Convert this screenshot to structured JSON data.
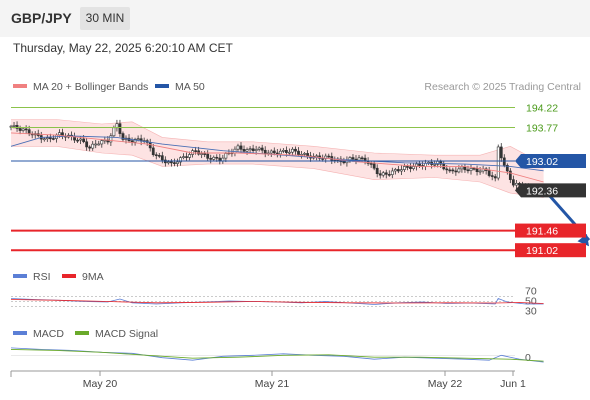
{
  "header": {
    "symbol": "GBP/JPY",
    "interval": "30 MIN",
    "timestamp": "Thursday, May 22, 2025 6:20:10 AM CET"
  },
  "legend": {
    "ma20_label": "MA 20 + Bollinger Bands",
    "ma50_label": "MA 50",
    "credit": "Research © 2025 Trading Central",
    "rsi_label": "RSI",
    "rsi_ma_label": "9MA",
    "macd_label": "MACD",
    "macd_signal_label": "MACD Signal"
  },
  "colors": {
    "candle": "#333333",
    "bollinger_fill": "#fde3e3",
    "bollinger_line": "#f19a9a",
    "ma20": "#f08080",
    "ma50": "#4a6fb5",
    "resistance": "#8bc34a",
    "support": "#e8252a",
    "pivot": "#2456a6",
    "last_price": "#333333",
    "arrow": "#2456a6",
    "rsi": "#5b7fd6",
    "rsi_ma": "#e8252a",
    "macd": "#5b7fd6",
    "macd_signal": "#6aaa2a"
  },
  "chart_data": {
    "type": "candlestick",
    "instrument": "GBP/JPY",
    "timeframe": "30 MIN",
    "x_tick_labels": [
      "May 20",
      "May 21",
      "May 22",
      "Jun 1"
    ],
    "y_range": [
      190.8,
      194.5
    ],
    "close_path": [
      [
        0,
        193.8
      ],
      [
        4,
        193.72
      ],
      [
        8,
        193.6
      ],
      [
        12,
        193.5
      ],
      [
        16,
        193.62
      ],
      [
        20,
        193.55
      ],
      [
        24,
        193.45
      ],
      [
        26,
        193.3
      ],
      [
        28,
        193.42
      ],
      [
        32,
        193.48
      ],
      [
        35,
        193.85
      ],
      [
        37,
        193.5
      ],
      [
        40,
        193.48
      ],
      [
        44,
        193.5
      ],
      [
        47,
        193.2
      ],
      [
        50,
        193.05
      ],
      [
        53,
        192.95
      ],
      [
        57,
        193.1
      ],
      [
        61,
        193.25
      ],
      [
        65,
        193.1
      ],
      [
        69,
        193.05
      ],
      [
        72,
        193.2
      ],
      [
        75,
        193.32
      ],
      [
        78,
        193.25
      ],
      [
        81,
        193.3
      ],
      [
        85,
        193.2
      ],
      [
        89,
        193.22
      ],
      [
        93,
        193.25
      ],
      [
        97,
        193.15
      ],
      [
        101,
        193.1
      ],
      [
        105,
        193.1
      ],
      [
        109,
        193.0
      ],
      [
        113,
        193.08
      ],
      [
        117,
        193.05
      ],
      [
        120,
        192.85
      ],
      [
        122,
        192.7
      ],
      [
        125,
        192.75
      ],
      [
        129,
        192.85
      ],
      [
        133,
        192.9
      ],
      [
        137,
        192.95
      ],
      [
        141,
        192.98
      ],
      [
        145,
        192.78
      ],
      [
        149,
        192.85
      ],
      [
        153,
        192.82
      ],
      [
        157,
        192.8
      ],
      [
        160,
        192.6
      ],
      [
        161,
        193.35
      ],
      [
        163,
        192.9
      ],
      [
        166,
        192.5
      ],
      [
        169,
        192.45
      ],
      [
        172,
        192.4
      ],
      [
        176,
        192.36
      ]
    ],
    "ma20_path": [
      [
        0,
        193.65
      ],
      [
        15,
        193.6
      ],
      [
        30,
        193.5
      ],
      [
        45,
        193.4
      ],
      [
        60,
        193.2
      ],
      [
        75,
        193.2
      ],
      [
        95,
        193.15
      ],
      [
        115,
        193.0
      ],
      [
        135,
        192.9
      ],
      [
        150,
        192.9
      ],
      [
        165,
        192.75
      ],
      [
        176,
        192.55
      ]
    ],
    "ma50_path": [
      [
        0,
        193.35
      ],
      [
        10,
        193.55
      ],
      [
        20,
        193.58
      ],
      [
        35,
        193.55
      ],
      [
        50,
        193.4
      ],
      [
        70,
        193.25
      ],
      [
        90,
        193.15
      ],
      [
        110,
        193.05
      ],
      [
        130,
        192.98
      ],
      [
        150,
        192.95
      ],
      [
        165,
        192.9
      ],
      [
        176,
        192.8
      ]
    ],
    "bollinger_upper": [
      [
        0,
        193.95
      ],
      [
        15,
        193.95
      ],
      [
        30,
        193.85
      ],
      [
        40,
        193.9
      ],
      [
        50,
        193.55
      ],
      [
        65,
        193.45
      ],
      [
        80,
        193.45
      ],
      [
        100,
        193.35
      ],
      [
        120,
        193.2
      ],
      [
        140,
        193.15
      ],
      [
        155,
        193.15
      ],
      [
        165,
        193.35
      ],
      [
        176,
        192.95
      ]
    ],
    "bollinger_lower": [
      [
        0,
        193.35
      ],
      [
        15,
        193.35
      ],
      [
        30,
        193.2
      ],
      [
        40,
        193.15
      ],
      [
        50,
        192.9
      ],
      [
        65,
        192.95
      ],
      [
        80,
        192.95
      ],
      [
        100,
        192.85
      ],
      [
        120,
        192.6
      ],
      [
        140,
        192.65
      ],
      [
        155,
        192.55
      ],
      [
        165,
        192.3
      ],
      [
        176,
        192.2
      ]
    ],
    "horizontal_levels": [
      {
        "value": 194.22,
        "label": "194.22",
        "kind": "resistance"
      },
      {
        "value": 193.77,
        "label": "193.77",
        "kind": "resistance"
      },
      {
        "value": 193.02,
        "label": "193.02",
        "kind": "pivot"
      },
      {
        "value": 192.36,
        "label": "192.36",
        "kind": "last"
      },
      {
        "value": 191.46,
        "label": "191.46",
        "kind": "support"
      },
      {
        "value": 191.02,
        "label": "191.02",
        "kind": "support"
      }
    ],
    "forecast_arrow": {
      "from": [
        176,
        192.36
      ],
      "to": [
        190,
        191.02
      ]
    },
    "rsi": {
      "levels": [
        70,
        50,
        30
      ],
      "range": [
        0,
        100
      ],
      "values": [
        [
          0,
          62
        ],
        [
          8,
          58
        ],
        [
          16,
          55
        ],
        [
          24,
          50
        ],
        [
          32,
          48
        ],
        [
          36,
          60
        ],
        [
          40,
          45
        ],
        [
          48,
          40
        ],
        [
          56,
          45
        ],
        [
          64,
          48
        ],
        [
          72,
          52
        ],
        [
          80,
          50
        ],
        [
          88,
          48
        ],
        [
          96,
          45
        ],
        [
          104,
          50
        ],
        [
          112,
          44
        ],
        [
          120,
          38
        ],
        [
          128,
          45
        ],
        [
          136,
          48
        ],
        [
          144,
          42
        ],
        [
          152,
          44
        ],
        [
          160,
          40
        ],
        [
          161,
          62
        ],
        [
          164,
          48
        ],
        [
          170,
          40
        ],
        [
          176,
          40
        ]
      ],
      "ma_values": [
        [
          0,
          58
        ],
        [
          16,
          55
        ],
        [
          32,
          50
        ],
        [
          48,
          45
        ],
        [
          64,
          47
        ],
        [
          80,
          50
        ],
        [
          96,
          47
        ],
        [
          112,
          45
        ],
        [
          128,
          44
        ],
        [
          144,
          45
        ],
        [
          160,
          44
        ],
        [
          168,
          46
        ],
        [
          176,
          42
        ]
      ]
    },
    "macd": {
      "zero_label": "0",
      "range": [
        -0.3,
        0.25
      ],
      "values": [
        [
          0,
          0.15
        ],
        [
          10,
          0.12
        ],
        [
          20,
          0.1
        ],
        [
          30,
          0.06
        ],
        [
          40,
          0.04
        ],
        [
          50,
          -0.05
        ],
        [
          60,
          -0.1
        ],
        [
          70,
          -0.02
        ],
        [
          80,
          0.0
        ],
        [
          90,
          0.03
        ],
        [
          100,
          0.0
        ],
        [
          110,
          -0.02
        ],
        [
          120,
          -0.08
        ],
        [
          130,
          -0.04
        ],
        [
          140,
          -0.06
        ],
        [
          150,
          -0.08
        ],
        [
          158,
          -0.1
        ],
        [
          162,
          0.0
        ],
        [
          168,
          -0.08
        ],
        [
          176,
          -0.14
        ]
      ],
      "signal": [
        [
          0,
          0.12
        ],
        [
          15,
          0.1
        ],
        [
          30,
          0.06
        ],
        [
          45,
          0.0
        ],
        [
          60,
          -0.06
        ],
        [
          75,
          -0.04
        ],
        [
          90,
          0.0
        ],
        [
          105,
          0.01
        ],
        [
          120,
          -0.04
        ],
        [
          135,
          -0.04
        ],
        [
          150,
          -0.06
        ],
        [
          165,
          -0.08
        ],
        [
          176,
          -0.12
        ]
      ]
    }
  }
}
